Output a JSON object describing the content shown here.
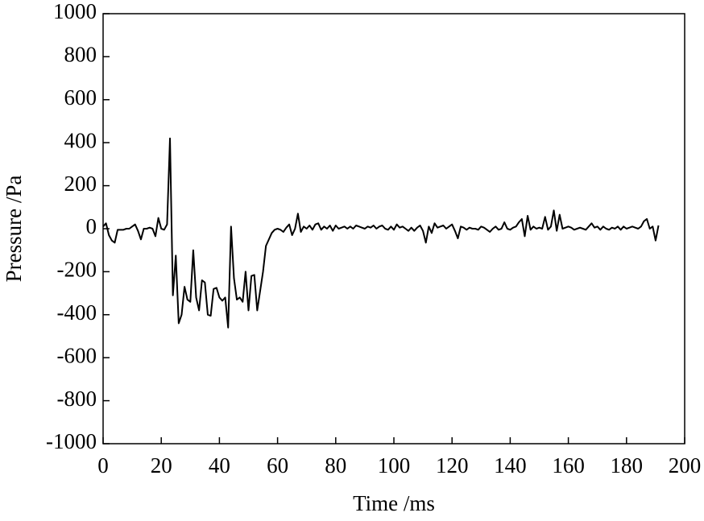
{
  "chart_data": {
    "type": "line",
    "x_label": "Time /ms",
    "y_label": "Pressure /Pa",
    "x": [
      0,
      1,
      2,
      3,
      4,
      5,
      6,
      7,
      8,
      9,
      10,
      11,
      12,
      13,
      14,
      15,
      16,
      17,
      18,
      19,
      20,
      21,
      22,
      23,
      24,
      25,
      26,
      27,
      28,
      29,
      30,
      31,
      32,
      33,
      34,
      35,
      36,
      37,
      38,
      39,
      40,
      41,
      42,
      43,
      44,
      45,
      46,
      47,
      48,
      49,
      50,
      51,
      52,
      53,
      54,
      55,
      56,
      57,
      58,
      59,
      60,
      61,
      62,
      63,
      64,
      65,
      66,
      67,
      68,
      69,
      70,
      71,
      72,
      73,
      74,
      75,
      76,
      77,
      78,
      79,
      80,
      81,
      82,
      83,
      84,
      85,
      86,
      87,
      88,
      89,
      90,
      91,
      92,
      93,
      94,
      95,
      96,
      97,
      98,
      99,
      100,
      101,
      102,
      103,
      104,
      105,
      106,
      107,
      108,
      109,
      110,
      111,
      112,
      113,
      114,
      115,
      116,
      117,
      118,
      119,
      120,
      121,
      122,
      123,
      124,
      125,
      126,
      127,
      128,
      129,
      130,
      131,
      132,
      133,
      134,
      135,
      136,
      137,
      138,
      139,
      140,
      141,
      142,
      143,
      144,
      145,
      146,
      147,
      148,
      149,
      150,
      151,
      152,
      153,
      154,
      155,
      156,
      157,
      158,
      159,
      160,
      161,
      162,
      163,
      164,
      165,
      166,
      167,
      168,
      169,
      170,
      171,
      172,
      173,
      174,
      175,
      176,
      177,
      178,
      179,
      180,
      181,
      182,
      183,
      184,
      185,
      186,
      187,
      188,
      189,
      190,
      191
    ],
    "series": [
      {
        "color": "#000000",
        "values": [
          10,
          25,
          -30,
          -55,
          -65,
          -5,
          -5,
          -5,
          0,
          0,
          10,
          20,
          -10,
          -50,
          0,
          0,
          5,
          0,
          -35,
          50,
          0,
          -5,
          20,
          420,
          -310,
          -125,
          -440,
          -400,
          -270,
          -330,
          -340,
          -100,
          -320,
          -380,
          -240,
          -250,
          -400,
          -405,
          -280,
          -275,
          -320,
          -335,
          -320,
          -460,
          10,
          -230,
          -330,
          -320,
          -340,
          -200,
          -380,
          -220,
          -215,
          -380,
          -290,
          -200,
          -80,
          -50,
          -20,
          -5,
          0,
          -5,
          -15,
          5,
          20,
          -30,
          0,
          70,
          -15,
          10,
          0,
          15,
          -5,
          20,
          25,
          -5,
          10,
          0,
          15,
          -10,
          15,
          0,
          5,
          10,
          0,
          10,
          0,
          15,
          10,
          5,
          0,
          10,
          5,
          15,
          0,
          10,
          15,
          0,
          -5,
          10,
          -5,
          20,
          5,
          10,
          0,
          -10,
          5,
          -10,
          5,
          15,
          -10,
          -65,
          10,
          -20,
          25,
          5,
          10,
          15,
          0,
          10,
          20,
          -10,
          -45,
          10,
          5,
          -5,
          5,
          0,
          0,
          -5,
          10,
          5,
          -5,
          -15,
          0,
          10,
          -5,
          0,
          30,
          0,
          -5,
          5,
          10,
          30,
          45,
          -35,
          60,
          -5,
          10,
          0,
          5,
          0,
          55,
          -5,
          10,
          85,
          -10,
          65,
          0,
          5,
          10,
          5,
          -5,
          0,
          5,
          0,
          -5,
          10,
          25,
          5,
          10,
          -5,
          10,
          0,
          -5,
          5,
          0,
          10,
          -5,
          10,
          0,
          5,
          10,
          5,
          0,
          10,
          35,
          45,
          0,
          10,
          -55,
          15
        ]
      }
    ],
    "xlim": [
      0,
      200
    ],
    "xticks": [
      0,
      20,
      40,
      60,
      80,
      100,
      120,
      140,
      160,
      180,
      200
    ],
    "ylim": [
      -1000,
      1000
    ],
    "yticks": [
      -1000,
      -800,
      -600,
      -400,
      -200,
      0,
      200,
      400,
      600,
      800,
      1000
    ]
  }
}
